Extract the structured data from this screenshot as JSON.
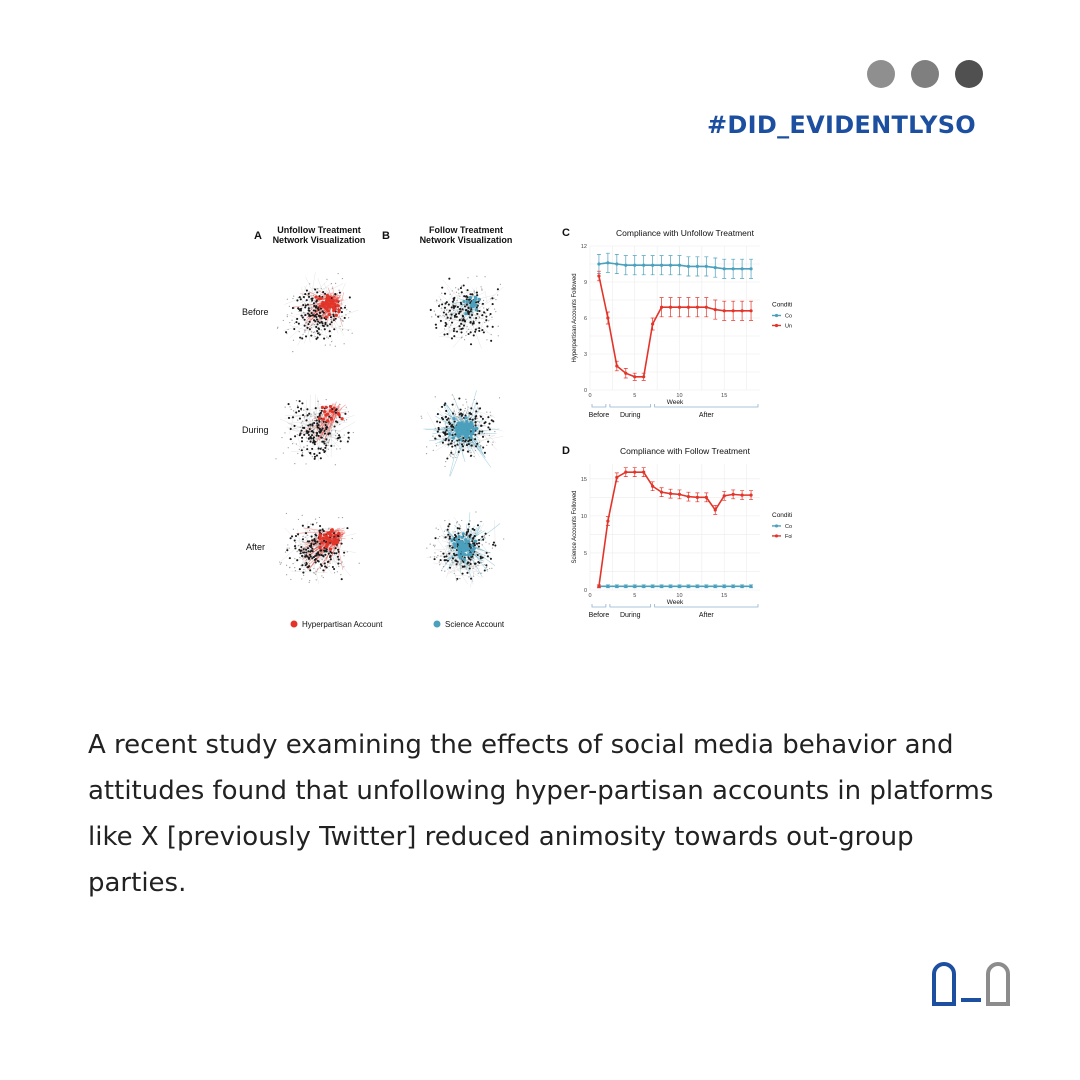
{
  "header": {
    "hashtag": "#DID_EVIDENTLYSO",
    "dots": [
      "#8f8f8f",
      "#7f7f7f",
      "#505050"
    ]
  },
  "colors": {
    "hyperpartisan_red": "#e3342a",
    "science_blue": "#4aa0bd",
    "brand_blue": "#1d4fa0",
    "logo_gray": "#8c8c8c",
    "node_black": "#1a1a1a"
  },
  "figure": {
    "panel_a": {
      "letter": "A",
      "title_line1": "Unfollow Treatment",
      "title_line2": "Network Visualization"
    },
    "panel_b": {
      "letter": "B",
      "title_line1": "Follow Treatment",
      "title_line2": "Network Visualization"
    },
    "row_labels": [
      "Before",
      "During",
      "After"
    ],
    "legend_a": "Hyperpartisan Account",
    "legend_b": "Science Account"
  },
  "chart_data": [
    {
      "id": "C",
      "type": "line",
      "title": "Compliance with Unfollow Treatment",
      "xlabel": "Week",
      "ylabel": "Hyperpartisan Accounts Followed",
      "xlim": [
        0,
        19
      ],
      "ylim": [
        0,
        12
      ],
      "xticks": [
        0,
        5,
        10,
        15
      ],
      "yticks": [
        0,
        3,
        6,
        9,
        12
      ],
      "legend_title": "Condition",
      "legend_position": "right",
      "phases": [
        {
          "label": "Before",
          "range": [
            0,
            2
          ]
        },
        {
          "label": "During",
          "range": [
            2,
            7
          ]
        },
        {
          "label": "After",
          "range": [
            7,
            19
          ]
        }
      ],
      "x": [
        1,
        2,
        3,
        4,
        5,
        6,
        7,
        8,
        9,
        10,
        11,
        12,
        13,
        14,
        15,
        16,
        17,
        18
      ],
      "series": [
        {
          "name": "Control",
          "color": "#4aa0bd",
          "values": [
            10.5,
            10.6,
            10.5,
            10.4,
            10.4,
            10.4,
            10.4,
            10.4,
            10.4,
            10.4,
            10.3,
            10.3,
            10.3,
            10.2,
            10.1,
            10.1,
            10.1,
            10.1
          ],
          "errors": [
            0.8,
            0.8,
            0.8,
            0.8,
            0.8,
            0.8,
            0.8,
            0.8,
            0.8,
            0.8,
            0.8,
            0.8,
            0.8,
            0.8,
            0.8,
            0.8,
            0.8,
            0.8
          ]
        },
        {
          "name": "Unfollow Treatment",
          "color": "#e3342a",
          "values": [
            9.5,
            6.0,
            2.0,
            1.4,
            1.1,
            1.1,
            5.5,
            6.9,
            6.9,
            6.9,
            6.9,
            6.9,
            6.9,
            6.7,
            6.6,
            6.6,
            6.6,
            6.6
          ],
          "errors": [
            0.4,
            0.5,
            0.4,
            0.4,
            0.3,
            0.3,
            0.5,
            0.8,
            0.8,
            0.8,
            0.8,
            0.8,
            0.8,
            0.8,
            0.8,
            0.8,
            0.8,
            0.8
          ]
        }
      ]
    },
    {
      "id": "D",
      "type": "line",
      "title": "Compliance with Follow Treatment",
      "xlabel": "Week",
      "ylabel": "Science Accounts Followed",
      "xlim": [
        0,
        19
      ],
      "ylim": [
        0,
        17
      ],
      "xticks": [
        0,
        5,
        10,
        15
      ],
      "yticks": [
        0,
        5,
        10,
        15
      ],
      "legend_title": "Condition",
      "legend_position": "right",
      "phases": [
        {
          "label": "Before",
          "range": [
            0,
            2
          ]
        },
        {
          "label": "During",
          "range": [
            2,
            7
          ]
        },
        {
          "label": "After",
          "range": [
            7,
            19
          ]
        }
      ],
      "x": [
        1,
        2,
        3,
        4,
        5,
        6,
        7,
        8,
        9,
        10,
        11,
        12,
        13,
        14,
        15,
        16,
        17,
        18
      ],
      "series": [
        {
          "name": "Control",
          "color": "#4aa0bd",
          "values": [
            0.5,
            0.5,
            0.5,
            0.5,
            0.5,
            0.5,
            0.5,
            0.5,
            0.5,
            0.5,
            0.5,
            0.5,
            0.5,
            0.5,
            0.5,
            0.5,
            0.5,
            0.5
          ],
          "errors": [
            0.2,
            0.2,
            0.2,
            0.2,
            0.2,
            0.2,
            0.2,
            0.2,
            0.2,
            0.2,
            0.2,
            0.2,
            0.2,
            0.2,
            0.2,
            0.2,
            0.2,
            0.2
          ]
        },
        {
          "name": "Follow Treatment",
          "color": "#e3342a",
          "values": [
            0.5,
            9.3,
            15.2,
            15.9,
            15.9,
            15.9,
            14.0,
            13.2,
            13.0,
            12.9,
            12.6,
            12.5,
            12.5,
            10.8,
            12.7,
            12.9,
            12.8,
            12.8
          ],
          "errors": [
            0.2,
            0.6,
            0.6,
            0.6,
            0.6,
            0.6,
            0.6,
            0.6,
            0.6,
            0.6,
            0.6,
            0.6,
            0.6,
            0.6,
            0.6,
            0.6,
            0.6,
            0.6
          ]
        }
      ]
    }
  ],
  "caption": "A recent study examining the effects of social media behavior and attitudes found that unfollowing hyper-partisan accounts in platforms like X [previously Twitter] reduced animosity towards out-group parties."
}
